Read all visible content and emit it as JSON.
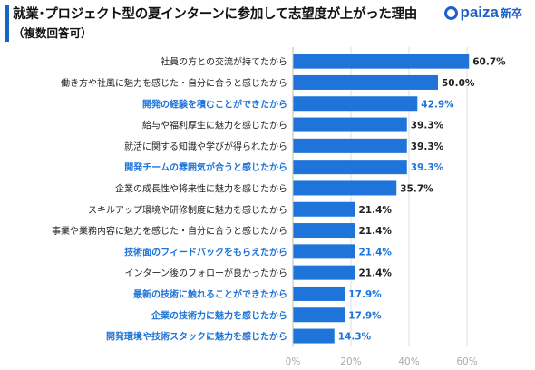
{
  "header": {
    "title": "就業･プロジェクト型の夏インターンに参加して志望度が上がった理由",
    "subtitle": "（複数回答可）",
    "logo_text": "paiza",
    "logo_sub": "新卒"
  },
  "colors": {
    "bar": "#1e74d8",
    "highlight_text": "#1e74d8",
    "normal_text": "#222222",
    "axis_text": "#aaaaaa",
    "grid": "#dddddd"
  },
  "chart_data": {
    "type": "bar",
    "orientation": "horizontal",
    "categories": [
      "社員の方との交流が持てたから",
      "働き方や社風に魅力を感じた・自分に合うと感じたから",
      "開発の経験を積むことができたから",
      "給与や福利厚生に魅力を感じたから",
      "就活に関する知識や学びが得られたから",
      "開発チームの雰囲気が合うと感じたから",
      "企業の成長性や将来性に魅力を感じたから",
      "スキルアップ環境や研修制度に魅力を感じたから",
      "事業や業務内容に魅力を感じた・自分に合うと感じたから",
      "技術面のフィードバックをもらえたから",
      "インターン後のフォローが良かったから",
      "最新の技術に触れることができたから",
      "企業の技術力に魅力を感じたから",
      "開発環境や技術スタックに魅力を感じたから"
    ],
    "values": [
      60.7,
      50.0,
      42.9,
      39.3,
      39.3,
      39.3,
      35.7,
      21.4,
      21.4,
      21.4,
      21.4,
      17.9,
      17.9,
      14.3
    ],
    "value_labels": [
      "60.7%",
      "50.0%",
      "42.9%",
      "39.3%",
      "39.3%",
      "39.3%",
      "35.7%",
      "21.4%",
      "21.4%",
      "21.4%",
      "21.4%",
      "17.9%",
      "17.9%",
      "14.3%"
    ],
    "highlighted": [
      false,
      false,
      true,
      false,
      false,
      true,
      false,
      false,
      false,
      true,
      false,
      true,
      true,
      true
    ],
    "xlim": [
      0,
      60
    ],
    "xticks": [
      0,
      20,
      40,
      60
    ],
    "xtick_labels": [
      "0%",
      "20%",
      "40%",
      "60%"
    ],
    "grid": true
  }
}
